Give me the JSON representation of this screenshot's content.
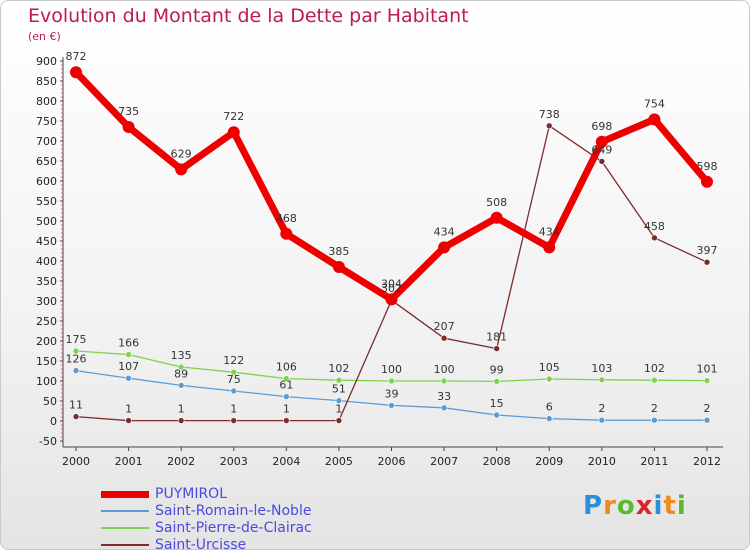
{
  "title": "Evolution du Montant de la Dette par Habitant",
  "unit": "(en €)",
  "logo": {
    "text": "Proxiti",
    "letter_colors": [
      "#2a8fd6",
      "#f08a1c",
      "#5cb82e",
      "#d8262d",
      "#2a8fd6",
      "#f08a1c",
      "#5cb82e"
    ]
  },
  "chart_data": {
    "type": "line",
    "title": "Evolution du Montant de la Dette par Habitant",
    "subtitle": "(en €)",
    "xlabel": "",
    "ylabel": "",
    "x": [
      "2000",
      "2001",
      "2002",
      "2003",
      "2004",
      "2005",
      "2006",
      "2007",
      "2008",
      "2009",
      "2010",
      "2011",
      "2012"
    ],
    "yticks": [
      -50,
      0,
      50,
      100,
      150,
      200,
      250,
      300,
      350,
      400,
      450,
      500,
      550,
      600,
      650,
      700,
      750,
      800,
      850,
      900
    ],
    "ylim": [
      -50,
      900
    ],
    "grid": false,
    "legend": "bottom-left",
    "series": [
      {
        "name": "Saint-Pierre-de-Clairac",
        "color": "#7fd24f",
        "width": 1.3,
        "values": [
          175,
          166,
          135,
          122,
          106,
          102,
          100,
          100,
          99,
          105,
          103,
          102,
          101
        ]
      },
      {
        "name": "Saint-Romain-le-Noble",
        "color": "#5b9bd5",
        "width": 1.3,
        "values": [
          126,
          107,
          89,
          75,
          61,
          51,
          39,
          33,
          15,
          6,
          2,
          2,
          2
        ]
      },
      {
        "name": "Saint-Urcisse",
        "color": "#7b2c2c",
        "width": 1.3,
        "values": [
          11,
          1,
          1,
          1,
          1,
          1,
          302,
          207,
          181,
          738,
          649,
          458,
          397
        ]
      },
      {
        "name": "PUYMIROL",
        "color": "#ee0000",
        "width": 7,
        "values": [
          872,
          735,
          629,
          722,
          468,
          385,
          304,
          434,
          508,
          434,
          698,
          754,
          598
        ]
      }
    ],
    "legend_order": [
      "PUYMIROL",
      "Saint-Romain-le-Noble",
      "Saint-Pierre-de-Clairac",
      "Saint-Urcisse"
    ]
  }
}
